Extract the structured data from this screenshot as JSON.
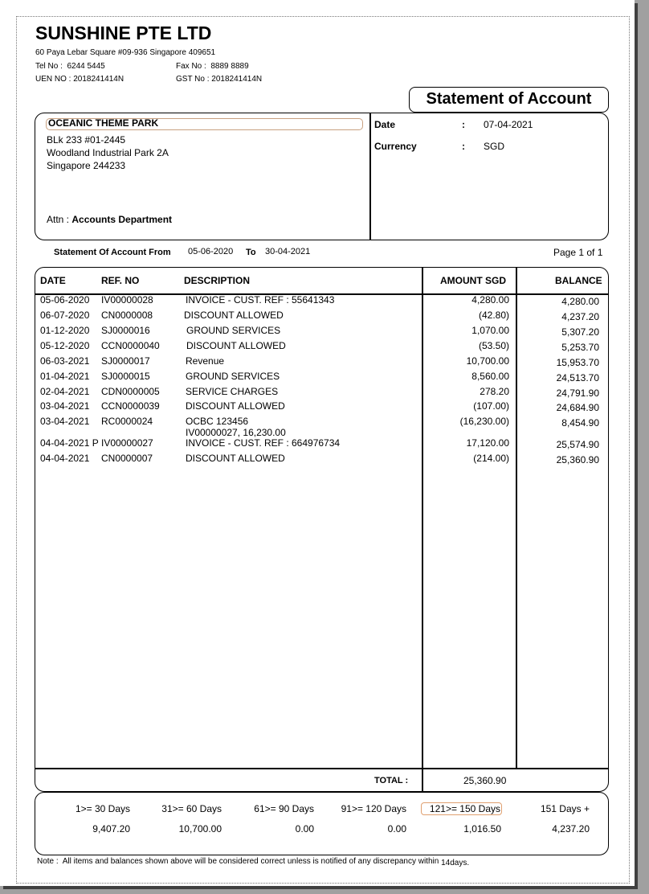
{
  "company": {
    "name": "SUNSHINE PTE LTD",
    "address": "60 Paya Lebar Square #09-936 Singapore 409651",
    "tel_label": "Tel No :",
    "tel": "6244 5445",
    "fax_label": "Fax No :",
    "fax": "8889 8889",
    "uen_label": "UEN NO :",
    "uen": "2018241414N",
    "gst_label": "GST No :",
    "gst": "2018241414N"
  },
  "title": "Statement of Account",
  "customer": {
    "name": "OCEANIC THEME PARK",
    "address1": "BLk 233 #01-2445",
    "address2": "Woodland Industrial Park 2A",
    "address3": "Singapore 244233",
    "attn_label": "Attn :",
    "attn": "Accounts Department"
  },
  "meta": {
    "date_label": "Date",
    "date": "07-04-2021",
    "currency_label": "Currency",
    "currency": "SGD",
    "colon": ":"
  },
  "period": {
    "from_label": "Statement Of Account From",
    "from": "05-06-2020",
    "to_label": "To",
    "to": "30-04-2021",
    "page": "Page 1 of 1"
  },
  "table": {
    "headers": [
      "DATE",
      "REF. NO",
      "DESCRIPTION",
      "AMOUNT SGD",
      "BALANCE"
    ],
    "rows": [
      {
        "date": "05-06-2020",
        "ref": "IV00000028",
        "desc": "INVOICE - CUST. REF : 55641343",
        "desc2": "",
        "amount": "4,280.00",
        "balance": "4,280.00"
      },
      {
        "date": "06-07-2020",
        "ref": "CN0000008",
        "desc": "DISCOUNT ALLOWED",
        "desc2": "",
        "amount": "(42.80)",
        "balance": "4,237.20"
      },
      {
        "date": "01-12-2020",
        "ref": "SJ0000016",
        "desc": "GROUND SERVICES",
        "desc2": "",
        "amount": "1,070.00",
        "balance": "5,307.20"
      },
      {
        "date": "05-12-2020",
        "ref": "CCN0000040",
        "desc": "DISCOUNT ALLOWED",
        "desc2": "",
        "amount": "(53.50)",
        "balance": "5,253.70"
      },
      {
        "date": "06-03-2021",
        "ref": "SJ0000017",
        "desc": "Revenue",
        "desc2": "",
        "amount": "10,700.00",
        "balance": "15,953.70"
      },
      {
        "date": "01-04-2021",
        "ref": "SJ0000015",
        "desc": "GROUND SERVICES",
        "desc2": "",
        "amount": "8,560.00",
        "balance": "24,513.70"
      },
      {
        "date": "02-04-2021",
        "ref": "CDN0000005",
        "desc": "SERVICE CHARGES",
        "desc2": "",
        "amount": "278.20",
        "balance": "24,791.90"
      },
      {
        "date": "03-04-2021",
        "ref": "CCN0000039",
        "desc": "DISCOUNT ALLOWED",
        "desc2": "",
        "amount": "(107.00)",
        "balance": "24,684.90"
      },
      {
        "date": "03-04-2021",
        "ref": "RC0000024",
        "desc": "OCBC 123456",
        "desc2": "IV00000027,  16,230.00",
        "amount": "(16,230.00)",
        "balance": "8,454.90"
      },
      {
        "date": "04-04-2021 P",
        "ref": "IV00000027",
        "desc": "INVOICE - CUST. REF : 664976734",
        "desc2": "",
        "amount": "17,120.00",
        "balance": "25,574.90"
      },
      {
        "date": "04-04-2021",
        "ref": "CN0000007",
        "desc": "DISCOUNT ALLOWED",
        "desc2": "",
        "amount": "(214.00)",
        "balance": "25,360.90"
      }
    ],
    "total_label": "TOTAL :",
    "total": "25,360.90"
  },
  "aging": [
    {
      "label": "1>= 30 Days",
      "value": "9,407.20"
    },
    {
      "label": "31>= 60 Days",
      "value": "10,700.00"
    },
    {
      "label": "61>= 90 Days",
      "value": "0.00"
    },
    {
      "label": "91>= 120 Days",
      "value": "0.00"
    },
    {
      "label": "121>= 150 Days",
      "value": "1,016.50"
    },
    {
      "label": "151 Days +",
      "value": "4,237.20"
    }
  ],
  "note": {
    "label": "Note :",
    "text": "All items and balances shown above will be considered correct unless is notified of any discrepancy within",
    "days": "14days."
  },
  "colors": {
    "highlight_border": "#e0a070"
  }
}
